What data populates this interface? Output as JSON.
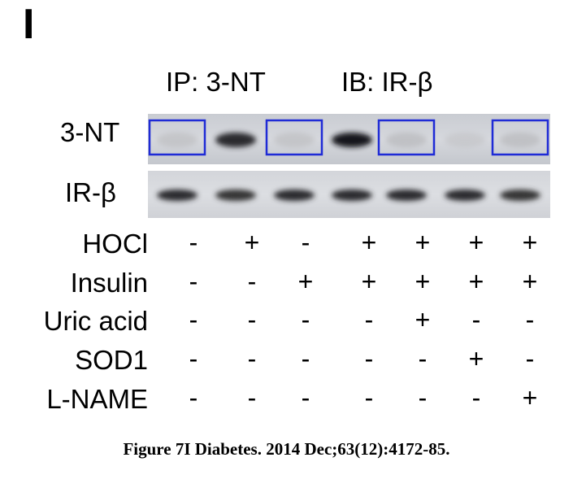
{
  "panel_letter": "I",
  "header": {
    "ip": "IP: 3-NT",
    "ib": "IB: IR-β"
  },
  "blots": [
    {
      "label": "3-NT",
      "band_intensity": [
        0.12,
        0.85,
        0.12,
        0.95,
        0.15,
        0.08,
        0.15
      ],
      "boxed_lanes": [
        1,
        3,
        5,
        7
      ],
      "box_color": "#1f2bd6"
    },
    {
      "label": "IR-β",
      "band_intensity": [
        0.85,
        0.8,
        0.85,
        0.85,
        0.85,
        0.85,
        0.8
      ]
    }
  ],
  "conditions": [
    {
      "label": "HOCl",
      "values": [
        "-",
        "+",
        "-",
        "+",
        "+",
        "+",
        "+"
      ]
    },
    {
      "label": "Insulin",
      "values": [
        "-",
        "-",
        "+",
        "+",
        "+",
        "+",
        "+"
      ]
    },
    {
      "label": "Uric acid",
      "values": [
        "-",
        "-",
        "-",
        "-",
        "+",
        "-",
        "-"
      ]
    },
    {
      "label": "SOD1",
      "values": [
        "-",
        "-",
        "-",
        "-",
        "-",
        "+",
        "-"
      ]
    },
    {
      "label": "L-NAME",
      "values": [
        "-",
        "-",
        "-",
        "-",
        "-",
        "-",
        "+"
      ]
    }
  ],
  "caption": "Figure 7I Diabetes. 2014 Dec;63(12):4172-85."
}
